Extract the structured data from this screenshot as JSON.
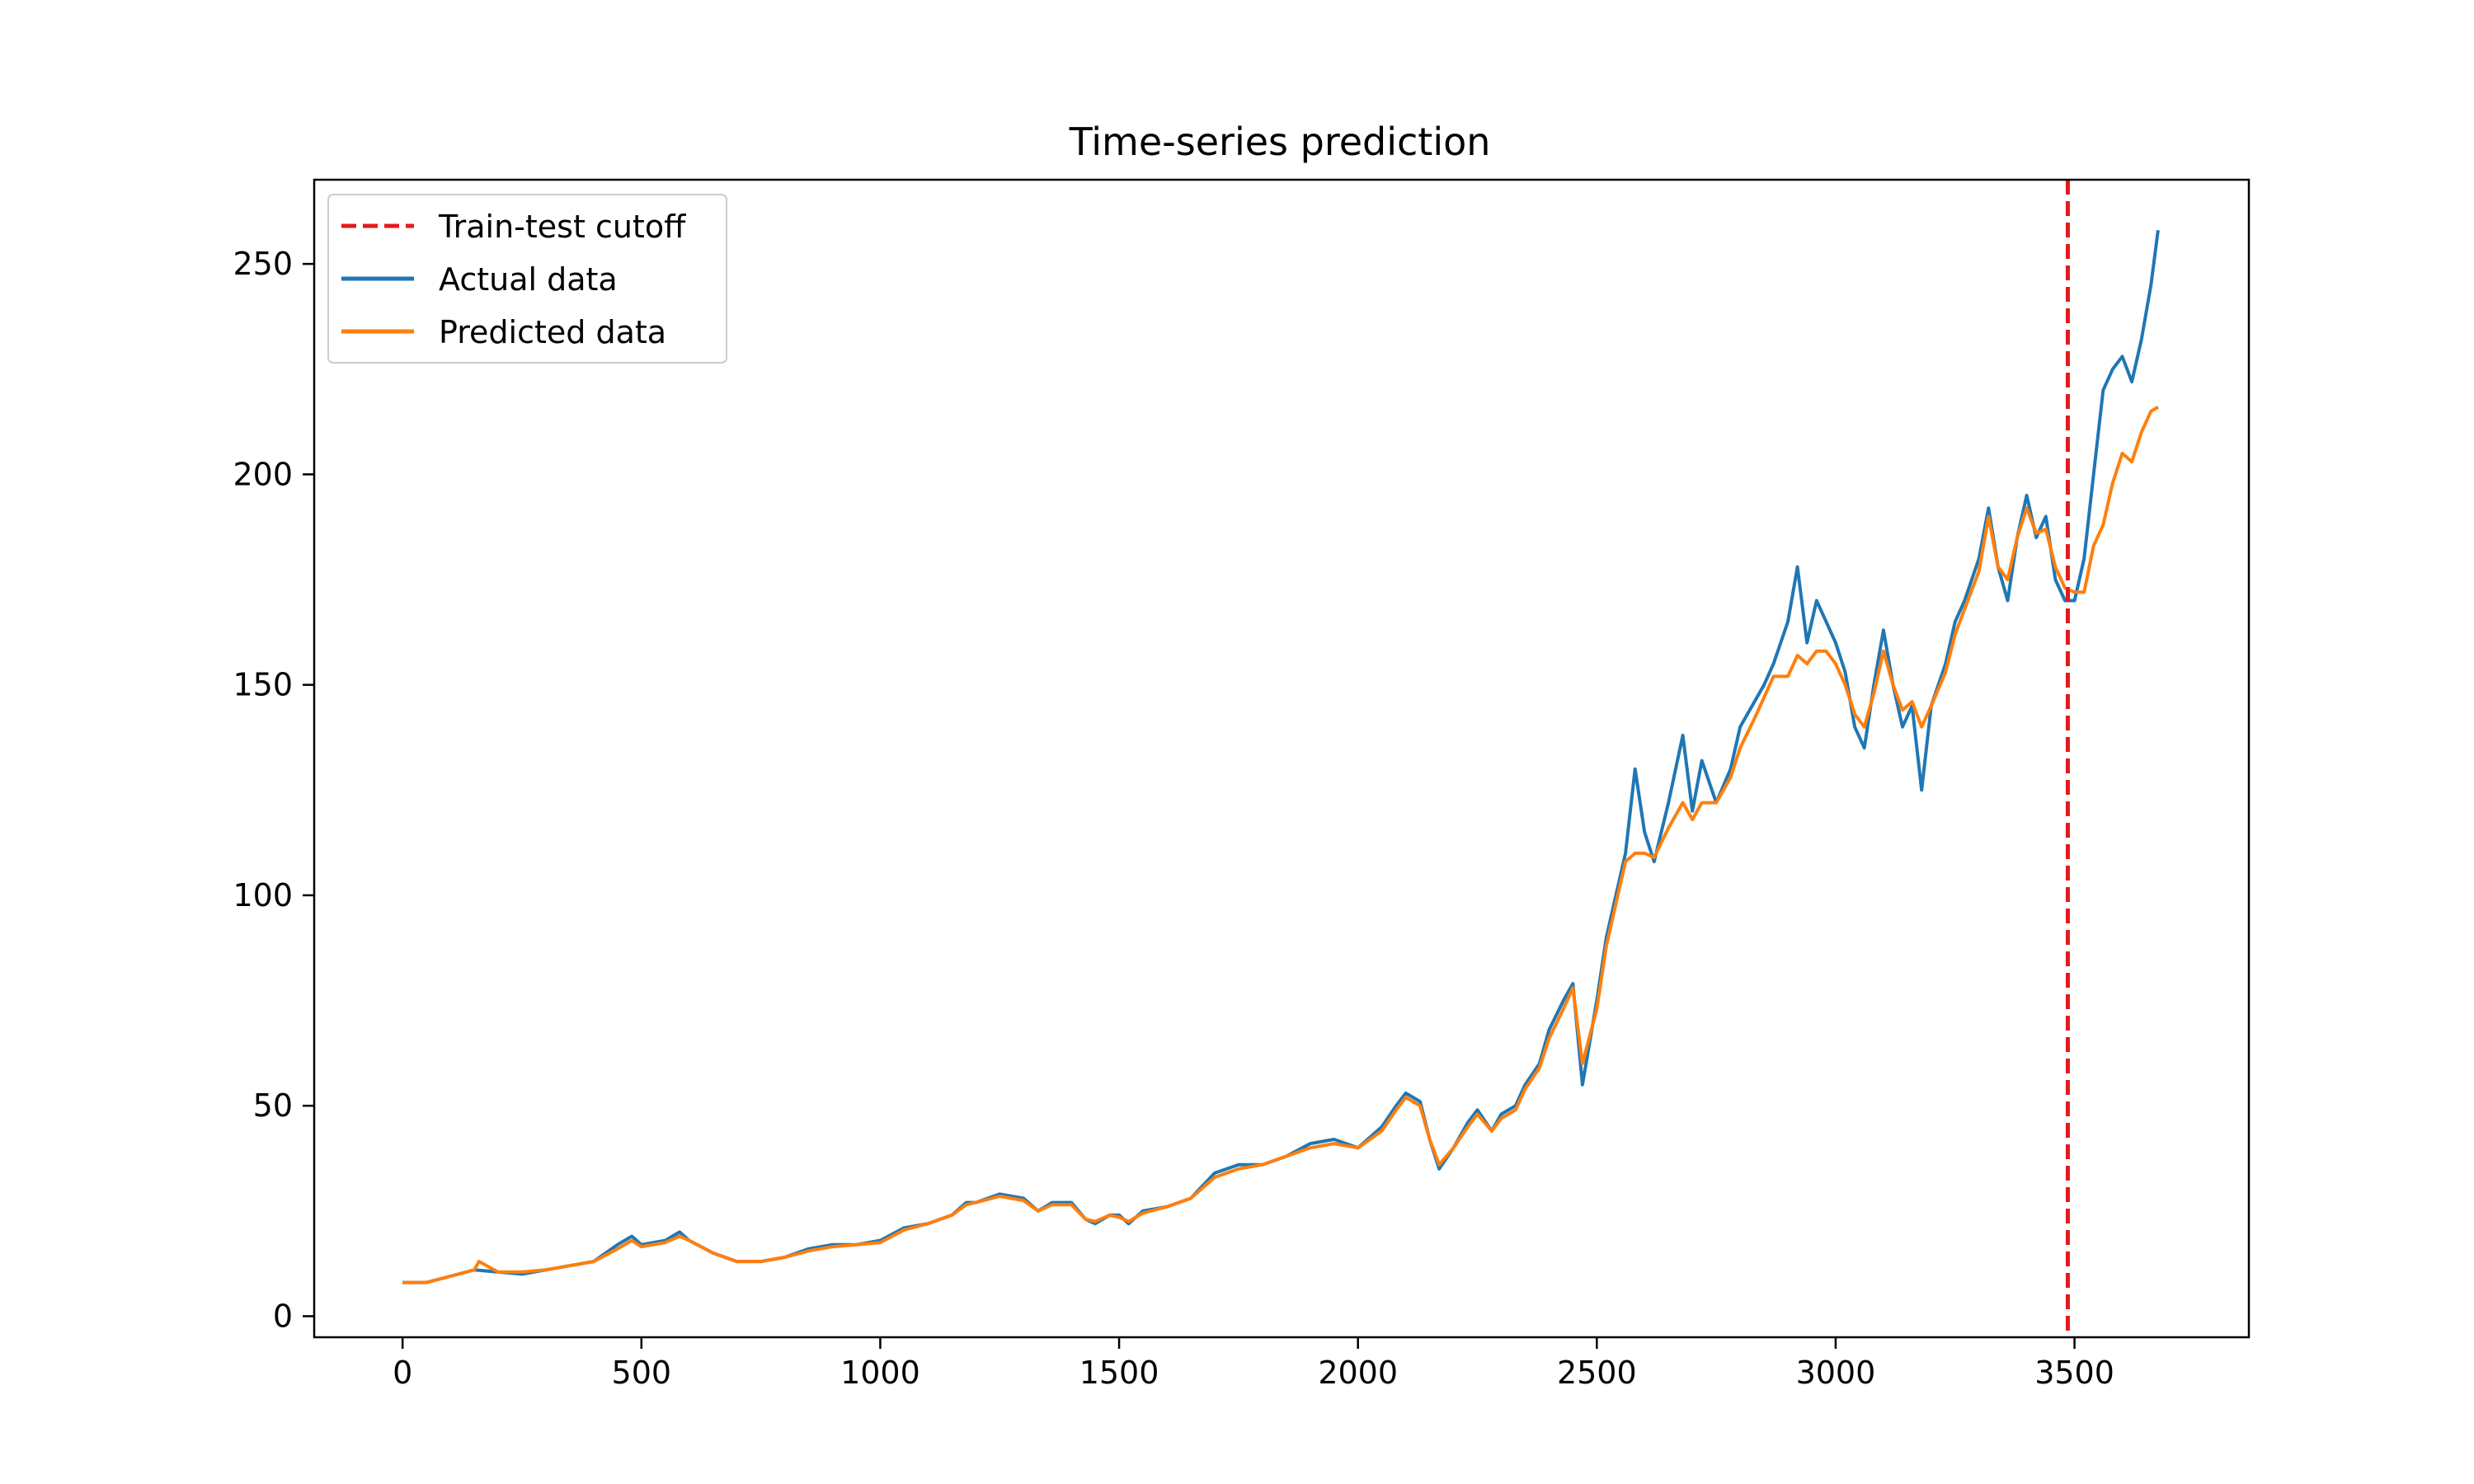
{
  "chart_data": {
    "type": "line",
    "title": "Time-series prediction",
    "xlabel": "",
    "ylabel": "",
    "xlim": [
      -185,
      3865
    ],
    "ylim": [
      -5,
      270
    ],
    "x_ticks": [
      0,
      500,
      1000,
      1500,
      2000,
      2500,
      3000,
      3500
    ],
    "y_ticks": [
      0,
      50,
      100,
      150,
      200,
      250
    ],
    "legend_position": "top-left",
    "grid": false,
    "cutoff": {
      "name": "Train-test cutoff",
      "x": 3486,
      "color": "#e41a1c",
      "style": "dashed"
    },
    "series": [
      {
        "name": "Actual data",
        "color": "#1f77b4",
        "points": [
          [
            0,
            8
          ],
          [
            50,
            8
          ],
          [
            100,
            9.5
          ],
          [
            150,
            11
          ],
          [
            200,
            10.5
          ],
          [
            250,
            10
          ],
          [
            300,
            11
          ],
          [
            350,
            12
          ],
          [
            400,
            13
          ],
          [
            450,
            17
          ],
          [
            480,
            19
          ],
          [
            500,
            17
          ],
          [
            550,
            18
          ],
          [
            580,
            20
          ],
          [
            600,
            18
          ],
          [
            650,
            15
          ],
          [
            700,
            13
          ],
          [
            750,
            13
          ],
          [
            800,
            14
          ],
          [
            850,
            16
          ],
          [
            900,
            17
          ],
          [
            950,
            17
          ],
          [
            1000,
            18
          ],
          [
            1050,
            21
          ],
          [
            1100,
            22
          ],
          [
            1150,
            24
          ],
          [
            1180,
            27
          ],
          [
            1200,
            27
          ],
          [
            1250,
            29
          ],
          [
            1300,
            28
          ],
          [
            1330,
            25
          ],
          [
            1360,
            27
          ],
          [
            1400,
            27
          ],
          [
            1430,
            23
          ],
          [
            1450,
            22
          ],
          [
            1480,
            24
          ],
          [
            1500,
            24
          ],
          [
            1520,
            22
          ],
          [
            1550,
            25
          ],
          [
            1600,
            26
          ],
          [
            1650,
            28
          ],
          [
            1700,
            34
          ],
          [
            1750,
            36
          ],
          [
            1800,
            36
          ],
          [
            1850,
            38
          ],
          [
            1900,
            41
          ],
          [
            1950,
            42
          ],
          [
            2000,
            40
          ],
          [
            2050,
            45
          ],
          [
            2080,
            50
          ],
          [
            2100,
            53
          ],
          [
            2130,
            51
          ],
          [
            2150,
            42
          ],
          [
            2170,
            35
          ],
          [
            2200,
            40
          ],
          [
            2230,
            46
          ],
          [
            2250,
            49
          ],
          [
            2280,
            44
          ],
          [
            2300,
            48
          ],
          [
            2330,
            50
          ],
          [
            2350,
            55
          ],
          [
            2380,
            60
          ],
          [
            2400,
            68
          ],
          [
            2430,
            75
          ],
          [
            2450,
            79
          ],
          [
            2470,
            55
          ],
          [
            2500,
            75
          ],
          [
            2520,
            90
          ],
          [
            2540,
            100
          ],
          [
            2560,
            110
          ],
          [
            2580,
            130
          ],
          [
            2600,
            115
          ],
          [
            2620,
            108
          ],
          [
            2650,
            122
          ],
          [
            2680,
            138
          ],
          [
            2700,
            120
          ],
          [
            2720,
            132
          ],
          [
            2750,
            122
          ],
          [
            2780,
            130
          ],
          [
            2800,
            140
          ],
          [
            2830,
            146
          ],
          [
            2850,
            150
          ],
          [
            2870,
            155
          ],
          [
            2900,
            165
          ],
          [
            2920,
            178
          ],
          [
            2940,
            160
          ],
          [
            2960,
            170
          ],
          [
            2980,
            165
          ],
          [
            3000,
            160
          ],
          [
            3020,
            153
          ],
          [
            3040,
            140
          ],
          [
            3060,
            135
          ],
          [
            3080,
            150
          ],
          [
            3100,
            163
          ],
          [
            3120,
            150
          ],
          [
            3140,
            140
          ],
          [
            3160,
            145
          ],
          [
            3180,
            125
          ],
          [
            3200,
            145
          ],
          [
            3230,
            155
          ],
          [
            3250,
            165
          ],
          [
            3270,
            170
          ],
          [
            3300,
            180
          ],
          [
            3320,
            192
          ],
          [
            3340,
            178
          ],
          [
            3360,
            170
          ],
          [
            3380,
            185
          ],
          [
            3400,
            195
          ],
          [
            3420,
            185
          ],
          [
            3440,
            190
          ],
          [
            3460,
            175
          ],
          [
            3480,
            170
          ],
          [
            3500,
            170
          ],
          [
            3520,
            180
          ],
          [
            3540,
            200
          ],
          [
            3560,
            220
          ],
          [
            3580,
            225
          ],
          [
            3600,
            228
          ],
          [
            3620,
            222
          ],
          [
            3640,
            232
          ],
          [
            3660,
            245
          ],
          [
            3675,
            258
          ]
        ]
      },
      {
        "name": "Predicted data",
        "color": "#ff7f0e",
        "points": [
          [
            0,
            8
          ],
          [
            50,
            8
          ],
          [
            100,
            9.5
          ],
          [
            150,
            11
          ],
          [
            160,
            13
          ],
          [
            200,
            10.5
          ],
          [
            250,
            10.5
          ],
          [
            300,
            11
          ],
          [
            350,
            12
          ],
          [
            400,
            13
          ],
          [
            450,
            16
          ],
          [
            480,
            18
          ],
          [
            500,
            16.5
          ],
          [
            550,
            17.5
          ],
          [
            580,
            19
          ],
          [
            600,
            18
          ],
          [
            650,
            15
          ],
          [
            700,
            13
          ],
          [
            750,
            13
          ],
          [
            800,
            14
          ],
          [
            850,
            15.5
          ],
          [
            900,
            16.5
          ],
          [
            950,
            17
          ],
          [
            1000,
            17.5
          ],
          [
            1050,
            20.5
          ],
          [
            1100,
            22
          ],
          [
            1150,
            24
          ],
          [
            1180,
            26.5
          ],
          [
            1200,
            27
          ],
          [
            1250,
            28.5
          ],
          [
            1300,
            27.5
          ],
          [
            1330,
            25
          ],
          [
            1360,
            26.5
          ],
          [
            1400,
            26.5
          ],
          [
            1430,
            23
          ],
          [
            1450,
            22.5
          ],
          [
            1480,
            24
          ],
          [
            1500,
            23.5
          ],
          [
            1520,
            22.5
          ],
          [
            1550,
            24.5
          ],
          [
            1600,
            26
          ],
          [
            1650,
            28
          ],
          [
            1700,
            33
          ],
          [
            1750,
            35
          ],
          [
            1800,
            36
          ],
          [
            1850,
            38
          ],
          [
            1900,
            40
          ],
          [
            1950,
            41
          ],
          [
            2000,
            40
          ],
          [
            2050,
            44
          ],
          [
            2080,
            49
          ],
          [
            2100,
            52
          ],
          [
            2130,
            50
          ],
          [
            2150,
            42
          ],
          [
            2170,
            36
          ],
          [
            2200,
            40
          ],
          [
            2230,
            45
          ],
          [
            2250,
            48
          ],
          [
            2280,
            44
          ],
          [
            2300,
            47
          ],
          [
            2330,
            49
          ],
          [
            2350,
            54
          ],
          [
            2380,
            59
          ],
          [
            2400,
            66
          ],
          [
            2430,
            73
          ],
          [
            2450,
            78
          ],
          [
            2470,
            60
          ],
          [
            2500,
            73
          ],
          [
            2520,
            88
          ],
          [
            2540,
            98
          ],
          [
            2560,
            108
          ],
          [
            2580,
            110
          ],
          [
            2600,
            110
          ],
          [
            2620,
            109
          ],
          [
            2650,
            116
          ],
          [
            2680,
            122
          ],
          [
            2700,
            118
          ],
          [
            2720,
            122
          ],
          [
            2750,
            122
          ],
          [
            2780,
            128
          ],
          [
            2800,
            135
          ],
          [
            2830,
            142
          ],
          [
            2850,
            147
          ],
          [
            2870,
            152
          ],
          [
            2900,
            152
          ],
          [
            2920,
            157
          ],
          [
            2940,
            155
          ],
          [
            2960,
            158
          ],
          [
            2980,
            158
          ],
          [
            3000,
            155
          ],
          [
            3020,
            150
          ],
          [
            3040,
            143
          ],
          [
            3060,
            140
          ],
          [
            3080,
            148
          ],
          [
            3100,
            158
          ],
          [
            3120,
            150
          ],
          [
            3140,
            144
          ],
          [
            3160,
            146
          ],
          [
            3180,
            140
          ],
          [
            3200,
            145
          ],
          [
            3230,
            153
          ],
          [
            3250,
            162
          ],
          [
            3270,
            168
          ],
          [
            3300,
            177
          ],
          [
            3320,
            190
          ],
          [
            3340,
            178
          ],
          [
            3360,
            175
          ],
          [
            3380,
            185
          ],
          [
            3400,
            192
          ],
          [
            3420,
            186
          ],
          [
            3440,
            187
          ],
          [
            3460,
            178
          ],
          [
            3480,
            173
          ],
          [
            3500,
            172
          ],
          [
            3520,
            172
          ],
          [
            3540,
            183
          ],
          [
            3560,
            188
          ],
          [
            3580,
            198
          ],
          [
            3600,
            205
          ],
          [
            3620,
            203
          ],
          [
            3640,
            210
          ],
          [
            3660,
            215
          ],
          [
            3675,
            216
          ]
        ]
      }
    ]
  }
}
